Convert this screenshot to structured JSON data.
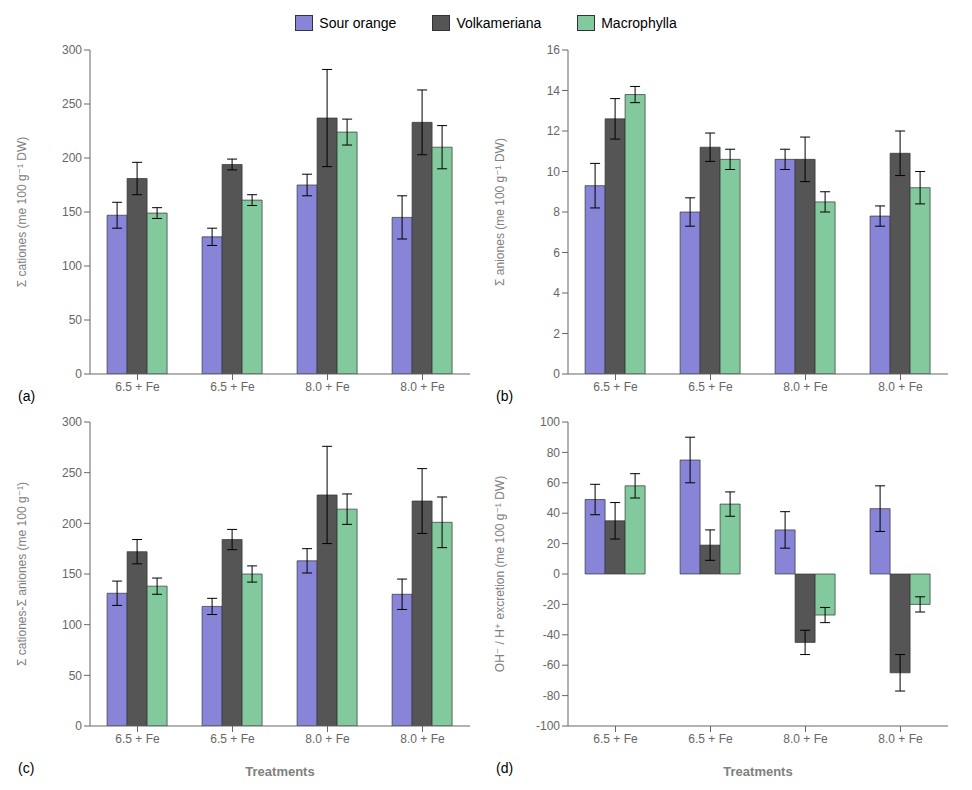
{
  "chart_data": [
    {
      "type": "bar",
      "title": "(a)",
      "ylabel": "Σ cationes (me 100 g⁻¹ DW)",
      "categories": [
        "6.5 + Fe",
        "6.5 + Fe",
        "8.0 + Fe",
        "8.0 + Fe"
      ],
      "ylim": [
        0,
        300
      ],
      "yticks": [
        0,
        50,
        100,
        150,
        200,
        250,
        300
      ],
      "grid": false,
      "legend": "top",
      "series": [
        {
          "name": "Sour orange",
          "color": "#8884d8",
          "values": [
            147,
            127,
            175,
            145
          ],
          "errors": [
            12,
            8,
            10,
            20
          ]
        },
        {
          "name": "Volkameriana",
          "color": "#555555",
          "values": [
            181,
            194,
            237,
            233
          ],
          "errors": [
            15,
            5,
            45,
            30
          ]
        },
        {
          "name": "Macrophylla",
          "color": "#82ca9d",
          "values": [
            149,
            161,
            224,
            210
          ],
          "errors": [
            5,
            5,
            12,
            20
          ]
        }
      ]
    },
    {
      "type": "bar",
      "title": "(b)",
      "ylabel": "Σ aniones (me 100 g⁻¹ DW)",
      "categories": [
        "6.5 + Fe",
        "6.5 + Fe",
        "8.0 + Fe",
        "8.0 + Fe"
      ],
      "ylim": [
        0,
        16
      ],
      "yticks": [
        0,
        2,
        4,
        6,
        8,
        10,
        12,
        14,
        16
      ],
      "grid": false,
      "series": [
        {
          "name": "Sour orange",
          "color": "#8884d8",
          "values": [
            9.3,
            8.0,
            10.6,
            7.8
          ],
          "errors": [
            1.1,
            0.7,
            0.5,
            0.5
          ]
        },
        {
          "name": "Volkameriana",
          "color": "#555555",
          "values": [
            12.6,
            11.2,
            10.6,
            10.9
          ],
          "errors": [
            1.0,
            0.7,
            1.1,
            1.1
          ]
        },
        {
          "name": "Macrophylla",
          "color": "#82ca9d",
          "values": [
            13.8,
            10.6,
            8.5,
            9.2
          ],
          "errors": [
            0.4,
            0.5,
            0.5,
            0.8
          ]
        }
      ]
    },
    {
      "type": "bar",
      "title": "(c)",
      "ylabel": "Σ cationes-Σ aniones (me 100 g⁻¹)",
      "xlabel": "Treatments",
      "categories": [
        "6.5 + Fe",
        "6.5 + Fe",
        "8.0 + Fe",
        "8.0 + Fe"
      ],
      "ylim": [
        0,
        300
      ],
      "yticks": [
        0,
        50,
        100,
        150,
        200,
        250,
        300
      ],
      "grid": false,
      "series": [
        {
          "name": "Sour orange",
          "color": "#8884d8",
          "values": [
            131,
            118,
            163,
            130
          ],
          "errors": [
            12,
            8,
            12,
            15
          ]
        },
        {
          "name": "Volkameriana",
          "color": "#555555",
          "values": [
            172,
            184,
            228,
            222
          ],
          "errors": [
            12,
            10,
            48,
            32
          ]
        },
        {
          "name": "Macrophylla",
          "color": "#82ca9d",
          "values": [
            138,
            150,
            214,
            201
          ],
          "errors": [
            8,
            8,
            15,
            25
          ]
        }
      ]
    },
    {
      "type": "bar",
      "title": "(d)",
      "ylabel": "OH⁻ / H⁺ excretion (me 100 g⁻¹ DW)",
      "xlabel": "Treatments",
      "categories": [
        "6.5 + Fe",
        "6.5 + Fe",
        "8.0 + Fe",
        "8.0 + Fe"
      ],
      "ylim": [
        -100,
        100
      ],
      "yticks": [
        -100,
        -80,
        -60,
        -40,
        -20,
        0,
        20,
        40,
        60,
        80,
        100
      ],
      "grid": false,
      "series": [
        {
          "name": "Sour orange",
          "color": "#8884d8",
          "values": [
            49,
            75,
            29,
            43
          ],
          "errors": [
            10,
            15,
            12,
            15
          ]
        },
        {
          "name": "Volkameriana",
          "color": "#555555",
          "values": [
            35,
            19,
            -45,
            -65
          ],
          "errors": [
            12,
            10,
            8,
            12
          ]
        },
        {
          "name": "Macrophylla",
          "color": "#82ca9d",
          "values": [
            58,
            46,
            -27,
            -20
          ],
          "errors": [
            8,
            8,
            5,
            5
          ]
        }
      ]
    }
  ]
}
